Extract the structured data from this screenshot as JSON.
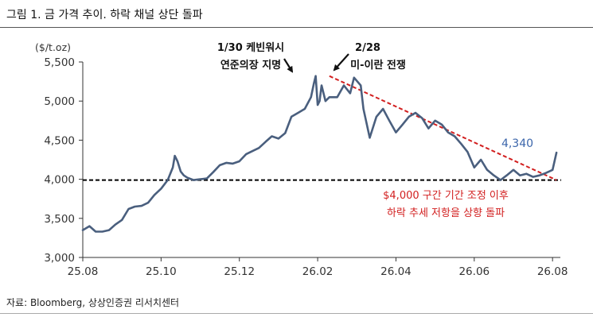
{
  "figure": {
    "title": "그림 1. 금 가격 추이. 하락 채널 상단 돌파",
    "unit": "($/t.oz)",
    "source": "자료: Bloomberg, 상상인증권 리서치센터"
  },
  "colors": {
    "series": "#4a5f7e",
    "trendline": "#d21f1f",
    "support": "#000000",
    "annotation_red": "#d21f1f",
    "last_value": "#3c66ab",
    "axis": "#333333"
  },
  "chart_data": {
    "type": "line",
    "title": "그림 1. 금 가격 추이. 하락 채널 상단 돌파",
    "ylabel": "($/t.oz)",
    "xlabel": "",
    "ylim": [
      3000,
      5500
    ],
    "yticks": [
      3000,
      3500,
      4000,
      4500,
      5000,
      5500
    ],
    "ytick_labels": [
      "3,000",
      "3,500",
      "4,000",
      "4,500",
      "5,000",
      "5,500"
    ],
    "xlim": [
      0,
      12.2
    ],
    "xticks": [
      0,
      2,
      4,
      6,
      8,
      10,
      12
    ],
    "xtick_labels": [
      "25.08",
      "25.10",
      "25.12",
      "26.02",
      "26.04",
      "26.06",
      "26.08"
    ],
    "grid": false,
    "series": [
      {
        "x": [
          0.0,
          0.17,
          0.33,
          0.5,
          0.67,
          0.83,
          1.0,
          1.17,
          1.33,
          1.5,
          1.67,
          1.83,
          2.0,
          2.17,
          2.3,
          2.35,
          2.42,
          2.5,
          2.58,
          2.67,
          2.83,
          3.0,
          3.17,
          3.33,
          3.5,
          3.67,
          3.83,
          4.0,
          4.17,
          4.33,
          4.5,
          4.67,
          4.83,
          5.0,
          5.17,
          5.33,
          5.5,
          5.67,
          5.83,
          5.9,
          5.95,
          6.0,
          6.05,
          6.1,
          6.2,
          6.3,
          6.5,
          6.67,
          6.83,
          6.93,
          7.1,
          7.17,
          7.33,
          7.5,
          7.67,
          7.83,
          8.0,
          8.17,
          8.33,
          8.5,
          8.67,
          8.83,
          9.0,
          9.17,
          9.33,
          9.5,
          9.67,
          9.83,
          10.0,
          10.17,
          10.33,
          10.5,
          10.67,
          10.83,
          11.0,
          11.17,
          11.33,
          11.5,
          11.67,
          11.83,
          12.0,
          12.1
        ],
        "values": [
          3350,
          3400,
          3330,
          3330,
          3350,
          3420,
          3480,
          3620,
          3650,
          3660,
          3700,
          3800,
          3880,
          3990,
          4150,
          4300,
          4230,
          4100,
          4050,
          4020,
          3990,
          4000,
          4010,
          4090,
          4180,
          4210,
          4200,
          4230,
          4320,
          4360,
          4400,
          4480,
          4550,
          4520,
          4590,
          4800,
          4850,
          4900,
          5050,
          5220,
          5320,
          4950,
          5000,
          5200,
          5000,
          5050,
          5050,
          5200,
          5100,
          5300,
          5200,
          4900,
          4530,
          4800,
          4900,
          4750,
          4600,
          4700,
          4800,
          4850,
          4780,
          4650,
          4750,
          4700,
          4600,
          4550,
          4450,
          4350,
          4150,
          4250,
          4120,
          4050,
          3990,
          4050,
          4120,
          4050,
          4070,
          4030,
          4050,
          4080,
          4120,
          4340
        ]
      }
    ],
    "trendline": {
      "x": [
        6.3,
        12.1
      ],
      "y": [
        5320,
        3990
      ]
    },
    "support_level": 3990,
    "annotations": [
      {
        "lines": [
          "1/30 케빈워시",
          "연준의장 지명"
        ],
        "target": [
          5.95,
          5320
        ]
      },
      {
        "lines": [
          "2/28",
          "미-이란 전쟁"
        ],
        "target": [
          6.45,
          5240
        ]
      },
      {
        "lines": [
          "$4,000 구간 기간 조정 이후",
          "하락 추세 저항을 상향 돌파"
        ]
      }
    ],
    "last_value_label": "4,340"
  }
}
